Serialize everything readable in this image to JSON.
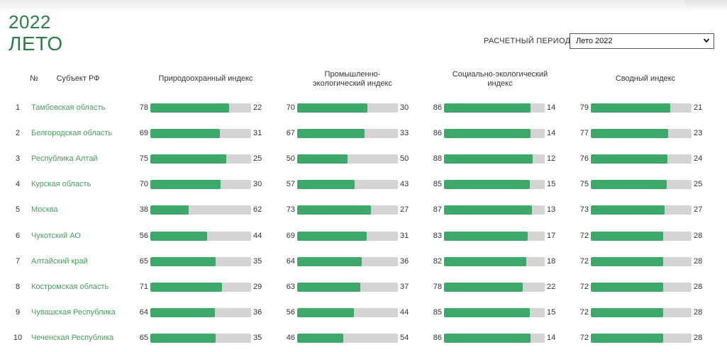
{
  "header": {
    "year": "2022",
    "season": "ЛЕТО",
    "period_label": "РАСЧЕТНЫЙ ПЕРИОД",
    "period_value": "Лето 2022"
  },
  "columns": {
    "num": "№",
    "region": "Субъект РФ",
    "nature": "Природоохранный индекс",
    "industrial_1": "Промышленно-",
    "industrial_2": "экологический индекс",
    "social_1": "Социально-экологический",
    "social_2": "индекс",
    "summary": "Сводный индекс"
  },
  "colors": {
    "accent": "#3ea86a",
    "bar_bg": "#d4d4d4",
    "title": "#2e7d46",
    "link": "#4a9a60"
  },
  "rows": [
    {
      "num": "1",
      "name": "Тамбовская область",
      "vals": [
        [
          78,
          22
        ],
        [
          70,
          30
        ],
        [
          86,
          14
        ],
        [
          79,
          21
        ]
      ]
    },
    {
      "num": "2",
      "name": "Белгородская область",
      "vals": [
        [
          69,
          31
        ],
        [
          67,
          33
        ],
        [
          86,
          14
        ],
        [
          77,
          23
        ]
      ]
    },
    {
      "num": "3",
      "name": "Республика Алтай",
      "vals": [
        [
          75,
          25
        ],
        [
          50,
          50
        ],
        [
          88,
          12
        ],
        [
          76,
          24
        ]
      ]
    },
    {
      "num": "4",
      "name": "Курская область",
      "vals": [
        [
          70,
          30
        ],
        [
          57,
          43
        ],
        [
          85,
          15
        ],
        [
          75,
          25
        ]
      ]
    },
    {
      "num": "5",
      "name": "Москва",
      "vals": [
        [
          38,
          62
        ],
        [
          73,
          27
        ],
        [
          87,
          13
        ],
        [
          73,
          27
        ]
      ]
    },
    {
      "num": "6",
      "name": "Чукотский АО",
      "vals": [
        [
          56,
          44
        ],
        [
          69,
          31
        ],
        [
          83,
          17
        ],
        [
          72,
          28
        ]
      ]
    },
    {
      "num": "7",
      "name": "Алтайский край",
      "vals": [
        [
          65,
          35
        ],
        [
          64,
          36
        ],
        [
          82,
          18
        ],
        [
          72,
          28
        ]
      ]
    },
    {
      "num": "8",
      "name": "Костромская область",
      "vals": [
        [
          71,
          29
        ],
        [
          63,
          37
        ],
        [
          78,
          22
        ],
        [
          72,
          28
        ]
      ]
    },
    {
      "num": "9",
      "name": "Чувашская Республика",
      "vals": [
        [
          64,
          36
        ],
        [
          56,
          44
        ],
        [
          85,
          15
        ],
        [
          72,
          28
        ]
      ]
    },
    {
      "num": "10",
      "name": "Чеченская Республика",
      "vals": [
        [
          65,
          35
        ],
        [
          46,
          54
        ],
        [
          86,
          14
        ],
        [
          72,
          28
        ]
      ]
    }
  ]
}
